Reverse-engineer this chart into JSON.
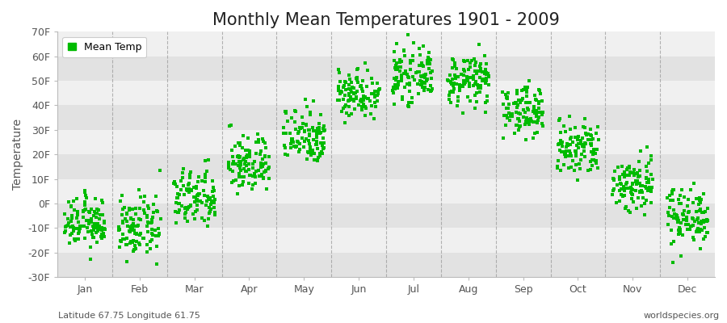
{
  "title": "Monthly Mean Temperatures 1901 - 2009",
  "ylabel": "Temperature",
  "xlabel": "",
  "ylim": [
    -30,
    70
  ],
  "ytick_labels": [
    "-30F",
    "-20F",
    "-10F",
    "0F",
    "10F",
    "20F",
    "30F",
    "40F",
    "50F",
    "60F",
    "70F"
  ],
  "ytick_values": [
    -30,
    -20,
    -10,
    0,
    10,
    20,
    30,
    40,
    50,
    60,
    70
  ],
  "months": [
    "Jan",
    "Feb",
    "Mar",
    "Apr",
    "May",
    "Jun",
    "Jul",
    "Aug",
    "Sep",
    "Oct",
    "Nov",
    "Dec"
  ],
  "month_centers": [
    0.5,
    1.5,
    2.5,
    3.5,
    4.5,
    5.5,
    6.5,
    7.5,
    8.5,
    9.5,
    10.5,
    11.5
  ],
  "dot_color": "#00bb00",
  "background_color": "#ffffff",
  "band_color_light": "#f0f0f0",
  "band_color_dark": "#e2e2e2",
  "grid_color": "#888888",
  "bottom_left_text": "Latitude 67.75 Longitude 61.75",
  "bottom_right_text": "worldspecies.org",
  "legend_label": "Mean Temp",
  "title_fontsize": 15,
  "axis_fontsize": 10,
  "tick_fontsize": 9,
  "mean_temps_F": [
    -8,
    -10,
    2,
    16,
    28,
    45,
    52,
    50,
    38,
    22,
    8,
    -5
  ],
  "std_temps_F": [
    5,
    6,
    6,
    6,
    6,
    5,
    5,
    5,
    5,
    6,
    6,
    6
  ],
  "n_points": 109
}
